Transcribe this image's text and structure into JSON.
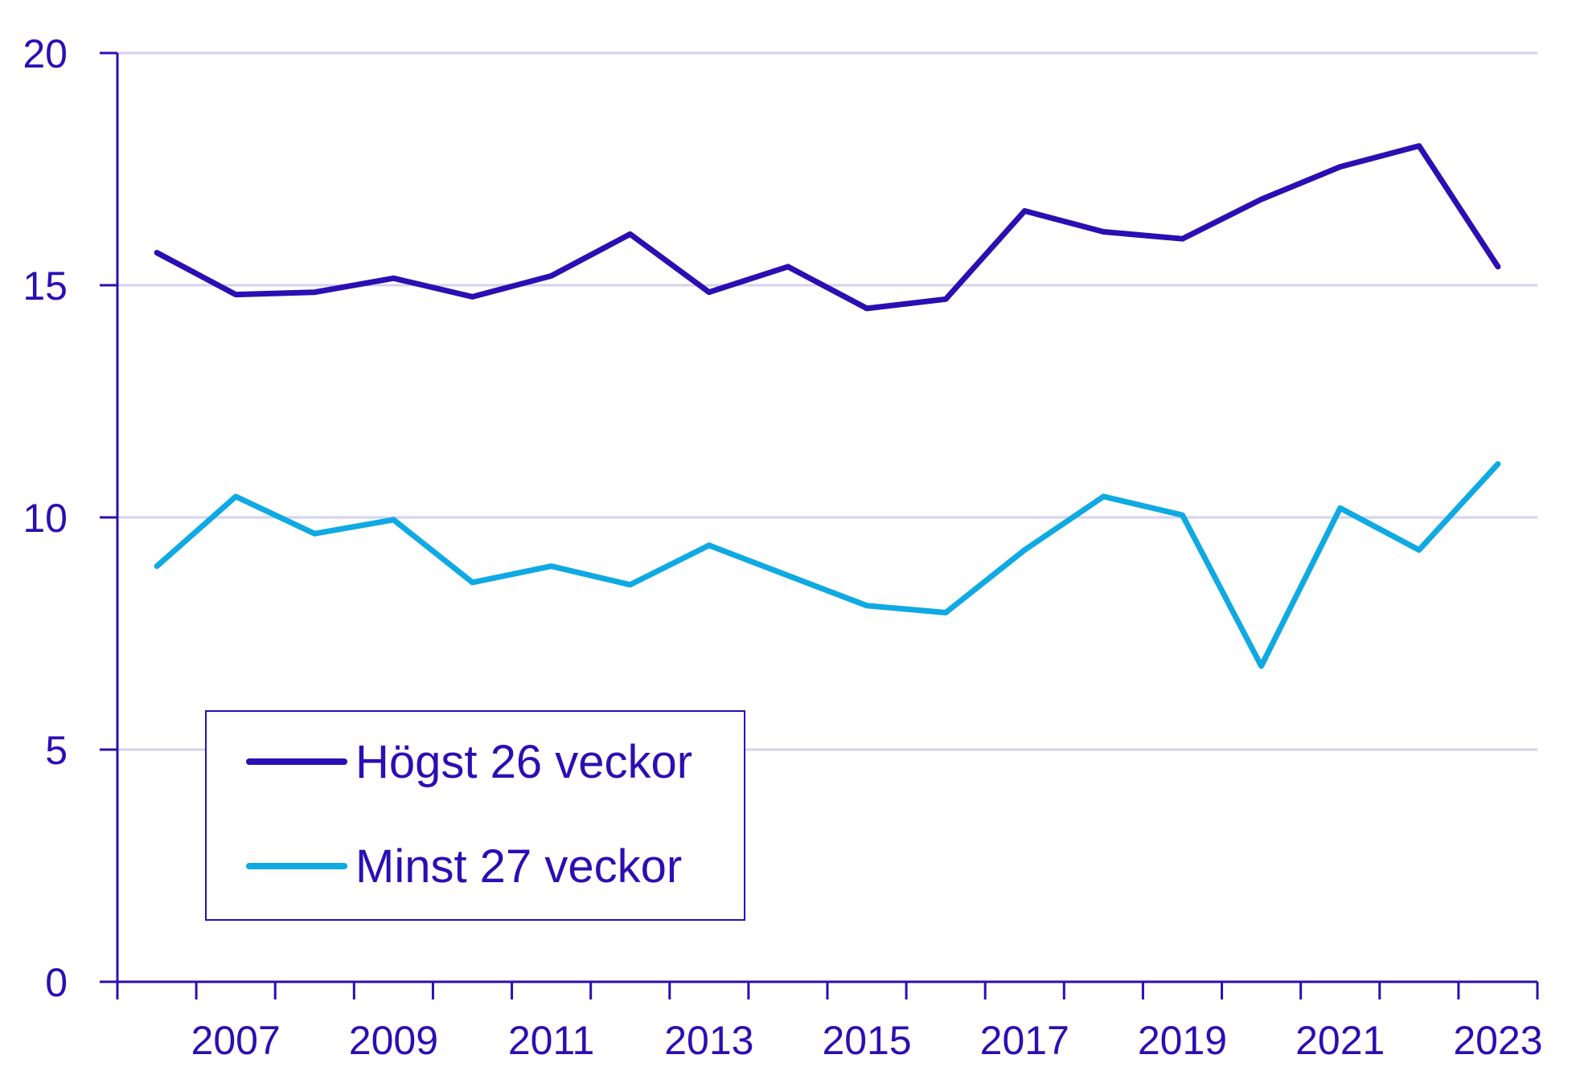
{
  "chart_data": {
    "type": "line",
    "title": "",
    "xlabel": "",
    "ylabel": "",
    "x": [
      2006,
      2007,
      2008,
      2009,
      2010,
      2011,
      2012,
      2013,
      2014,
      2015,
      2016,
      2017,
      2018,
      2019,
      2020,
      2021,
      2022,
      2023
    ],
    "x_tick_labels": [
      "2007",
      "2009",
      "2011",
      "2013",
      "2015",
      "2017",
      "2019",
      "2021",
      "2023"
    ],
    "y_tick_labels": [
      "0",
      "5",
      "10",
      "15",
      "20"
    ],
    "ylim": [
      0,
      20
    ],
    "xlim": [
      2005.5,
      2023.5
    ],
    "grid": "horizontal",
    "legend_position": "bottom-left",
    "series": [
      {
        "name": "Högst 26 veckor",
        "color": "#2a0fb3",
        "values": [
          15.7,
          14.8,
          14.85,
          15.15,
          14.75,
          15.2,
          16.1,
          14.85,
          15.4,
          14.5,
          14.7,
          16.6,
          16.15,
          16.0,
          16.85,
          17.55,
          18.0,
          15.4
        ]
      },
      {
        "name": "Minst 27 veckor",
        "color": "#0fa9e3",
        "values": [
          8.95,
          10.45,
          9.65,
          9.95,
          8.6,
          8.95,
          8.55,
          9.4,
          8.75,
          8.1,
          7.95,
          9.3,
          10.45,
          10.05,
          6.8,
          10.2,
          9.3,
          11.15
        ]
      }
    ]
  }
}
